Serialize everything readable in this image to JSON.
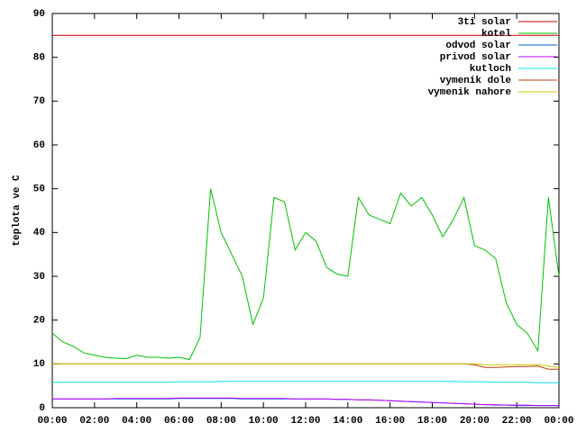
{
  "chart_data": {
    "type": "line",
    "ylabel": "teplota ve C",
    "x": [
      0,
      0.5,
      1,
      1.5,
      2,
      2.5,
      3,
      3.5,
      4,
      4.5,
      5,
      5.5,
      6,
      6.5,
      7,
      7.5,
      8,
      8.5,
      9,
      9.5,
      10,
      10.5,
      11,
      11.5,
      12,
      12.5,
      13,
      13.5,
      14,
      14.5,
      15,
      15.5,
      16,
      16.5,
      17,
      17.5,
      18,
      18.5,
      19,
      19.5,
      20,
      20.5,
      21,
      21.5,
      22,
      22.5,
      23,
      23.5,
      24
    ],
    "xlim": [
      0,
      24
    ],
    "xticks": [
      {
        "value": 0,
        "label": "00:00"
      },
      {
        "value": 2,
        "label": "02:00"
      },
      {
        "value": 4,
        "label": "04:00"
      },
      {
        "value": 6,
        "label": "06:00"
      },
      {
        "value": 8,
        "label": "08:00"
      },
      {
        "value": 10,
        "label": "10:00"
      },
      {
        "value": 12,
        "label": "12:00"
      },
      {
        "value": 14,
        "label": "14:00"
      },
      {
        "value": 16,
        "label": "16:00"
      },
      {
        "value": 18,
        "label": "18:00"
      },
      {
        "value": 20,
        "label": "20:00"
      },
      {
        "value": 22,
        "label": "22:00"
      },
      {
        "value": 24,
        "label": "00:00"
      }
    ],
    "ylim": [
      0,
      90
    ],
    "yticks": [
      0,
      10,
      20,
      30,
      40,
      50,
      60,
      70,
      80,
      90
    ],
    "legend": "top-right",
    "series": [
      {
        "name": "3ti solar",
        "color": "#d00000",
        "values": [
          85,
          85,
          85,
          85,
          85,
          85,
          85,
          85,
          85,
          85,
          85,
          85,
          85,
          85,
          85,
          85,
          85,
          85,
          85,
          85,
          85,
          85,
          85,
          85,
          85,
          85,
          85,
          85,
          85,
          85,
          85,
          85,
          85,
          85,
          85,
          85,
          85,
          85,
          85,
          85,
          85,
          85,
          85,
          85,
          85,
          85,
          85,
          85,
          85
        ]
      },
      {
        "name": "kotel",
        "color": "#00c000",
        "values": [
          17,
          15,
          14,
          12.5,
          12,
          11.5,
          11.3,
          11.2,
          12,
          11.5,
          11.5,
          11.3,
          11.5,
          11,
          16,
          50,
          40,
          35,
          30,
          19,
          25,
          48,
          47,
          36,
          40,
          38,
          32,
          30.5,
          30,
          48,
          44,
          43,
          42,
          49,
          46,
          48,
          44,
          39,
          43,
          48,
          37,
          36,
          34,
          24,
          19,
          17,
          13,
          48,
          30
        ]
      },
      {
        "name": "odvod solar",
        "color": "#0060e0",
        "values": [
          2,
          2,
          2,
          2,
          2,
          2,
          2,
          2,
          2,
          2,
          2,
          2,
          2.1,
          2.1,
          2.1,
          2.1,
          2.1,
          2.1,
          2,
          2,
          2,
          2,
          2,
          2,
          2,
          2,
          2,
          1.9,
          1.9,
          1.8,
          1.8,
          1.7,
          1.6,
          1.5,
          1.4,
          1.3,
          1.2,
          1.1,
          1,
          0.9,
          0.8,
          0.7,
          0.6,
          0.6,
          0.5,
          0.5,
          0.5,
          0.5,
          0.5
        ]
      },
      {
        "name": "privod solar",
        "color": "#c000ff",
        "values": [
          2,
          2,
          2,
          2,
          2,
          2,
          2.1,
          2.1,
          2.1,
          2.1,
          2.1,
          2.1,
          2.2,
          2.2,
          2.2,
          2.2,
          2.2,
          2.2,
          2.1,
          2.1,
          2.1,
          2.1,
          2.1,
          2,
          2,
          2,
          2,
          1.9,
          1.9,
          1.8,
          1.8,
          1.7,
          1.6,
          1.5,
          1.4,
          1.3,
          1.2,
          1.1,
          1,
          0.9,
          0.8,
          0.7,
          0.7,
          0.6,
          0.6,
          0.6,
          0.5,
          0.5,
          0.5
        ]
      },
      {
        "name": "kutloch",
        "color": "#00e0e0",
        "values": [
          5.8,
          5.8,
          5.8,
          5.8,
          5.8,
          5.8,
          5.8,
          5.8,
          5.8,
          5.8,
          5.8,
          5.8,
          5.9,
          5.9,
          5.9,
          5.9,
          6,
          6,
          6,
          6,
          6,
          6,
          6,
          6,
          6,
          6,
          6,
          6,
          6,
          6,
          6,
          6,
          6,
          6,
          6,
          6,
          6,
          6,
          6,
          5.9,
          5.9,
          5.9,
          5.8,
          5.8,
          5.8,
          5.8,
          5.7,
          5.7,
          5.7
        ]
      },
      {
        "name": "vymenik dole",
        "color": "#c04000",
        "values": [
          10,
          10,
          10,
          10,
          10,
          10,
          10,
          10,
          10,
          10,
          10,
          10,
          10,
          10,
          10,
          10,
          10,
          10,
          10,
          10,
          10,
          10,
          10,
          10,
          10,
          10,
          10,
          10,
          10,
          10,
          10,
          10,
          10,
          10,
          10,
          10,
          10,
          10,
          10,
          10,
          9.8,
          9.2,
          9.2,
          9.3,
          9.4,
          9.4,
          9.5,
          8.8,
          8.8
        ]
      },
      {
        "name": "vymenik nahore",
        "color": "#c8c800",
        "values": [
          10,
          10,
          10,
          10,
          10,
          10,
          10,
          10,
          10,
          10,
          10,
          10,
          10,
          10,
          10,
          10,
          10,
          10,
          10,
          10,
          10,
          10,
          10,
          10,
          10,
          10,
          10,
          10,
          10,
          10,
          10,
          10,
          10,
          10,
          10,
          10,
          10,
          10,
          10,
          10,
          10,
          9.8,
          9.8,
          9.8,
          9.8,
          9.8,
          9.8,
          9.5,
          9.2
        ]
      }
    ]
  }
}
